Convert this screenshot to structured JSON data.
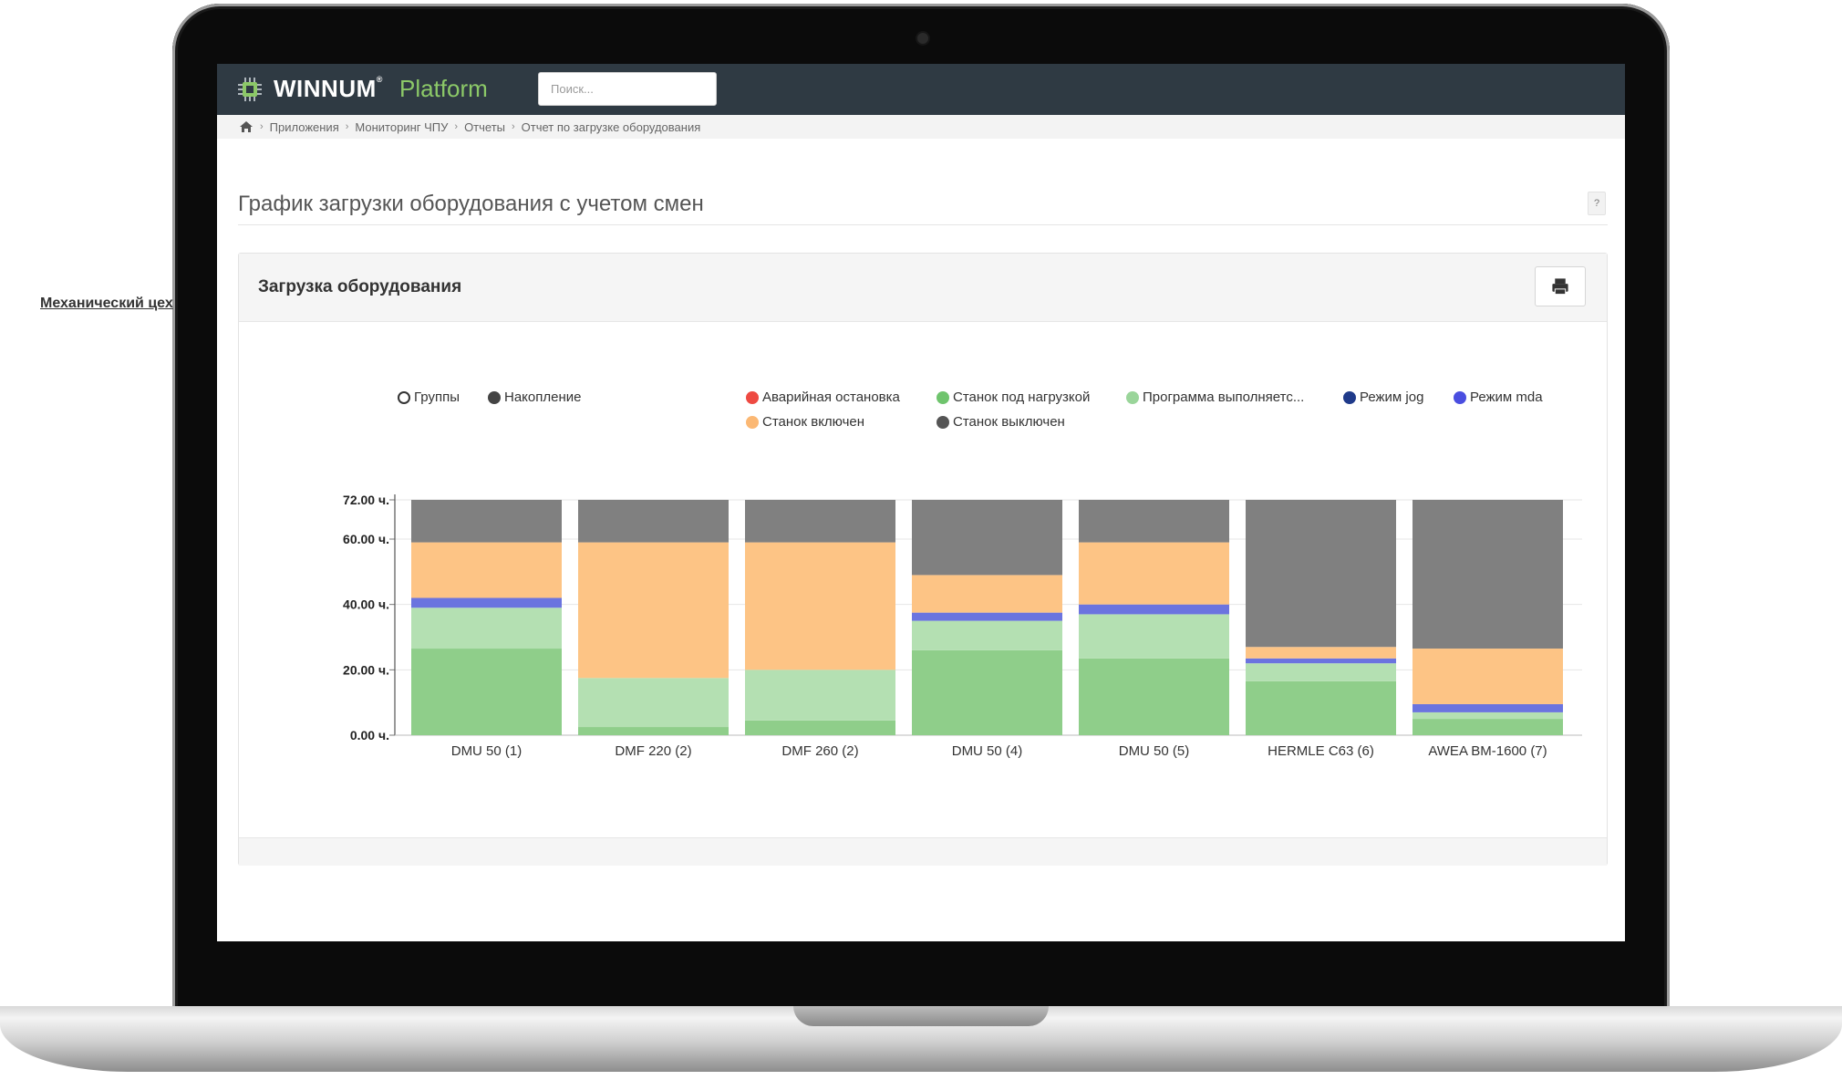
{
  "app": {
    "brand": "WINNUM",
    "brand_mark": "®",
    "brand_suffix": "Platform",
    "search_placeholder": "Поиск..."
  },
  "breadcrumb": [
    "Приложения",
    "Мониторинг ЧПУ",
    "Отчеты",
    "Отчет по загрузке оборудования"
  ],
  "page": {
    "title": "График загрузки оборудования с учетом смен",
    "help_label": "?"
  },
  "panel": {
    "title": "Загрузка оборудования",
    "section": "Механический цех"
  },
  "toggles": [
    {
      "label": "Группы",
      "color": "#ffffff"
    },
    {
      "label": "Накопление",
      "color": "#444444"
    }
  ],
  "legend": [
    {
      "label": "Аварийная остановка",
      "color": "#ee4a42"
    },
    {
      "label": "Станок под нагрузкой",
      "color": "#6fc46d"
    },
    {
      "label": "Программа выполняетс...",
      "color": "#9ad59a"
    },
    {
      "label": "Режим jog",
      "color": "#1f3a8a"
    },
    {
      "label": "Режим mda",
      "color": "#4a4ee0"
    },
    {
      "label": "Станок включен",
      "color": "#fbb874"
    },
    {
      "label": "Станок выключен",
      "color": "#555555"
    }
  ],
  "chart_data": {
    "type": "bar",
    "stacked": true,
    "ylim": [
      0,
      72
    ],
    "yticks": [
      "0.00 ч.",
      "20.00 ч.",
      "40.00 ч.",
      "60.00 ч.",
      "72.00 ч."
    ],
    "ytick_values": [
      0,
      20,
      40,
      60,
      72
    ],
    "grid": true,
    "categories": [
      "DMU 50 (1)",
      "DMF 220 (2)",
      "DMF 260 (2)",
      "DMU 50 (4)",
      "DMU 50 (5)",
      "HERMLE C63 (6)",
      "AWEA BM-1600 (7)"
    ],
    "series": [
      {
        "name": "Станок под нагрузкой",
        "color": "#8fce8a",
        "values": [
          26.5,
          2.5,
          4.5,
          26.0,
          23.5,
          16.5,
          5.0
        ]
      },
      {
        "name": "Программа выполняетс...",
        "color": "#b4e0b2",
        "values": [
          12.5,
          15.0,
          15.5,
          9.0,
          13.5,
          5.5,
          2.0
        ]
      },
      {
        "name": "Режим jog",
        "color": "#1f3a8a",
        "values": [
          0,
          0,
          0,
          0,
          0,
          0,
          0
        ]
      },
      {
        "name": "Режим mda",
        "color": "#6b74df",
        "values": [
          3.0,
          0,
          0,
          2.5,
          3.0,
          1.5,
          2.5
        ]
      },
      {
        "name": "Аварийная остановка",
        "color": "#ee4a42",
        "values": [
          0,
          0,
          0,
          0,
          0,
          0,
          0
        ]
      },
      {
        "name": "Станок включен",
        "color": "#fdc485",
        "values": [
          17.0,
          41.5,
          39.0,
          11.5,
          19.0,
          3.5,
          17.0
        ]
      },
      {
        "name": "Станок выключен",
        "color": "#808080",
        "values": [
          13.0,
          13.0,
          13.0,
          23.0,
          13.0,
          45.0,
          45.5
        ]
      }
    ]
  }
}
